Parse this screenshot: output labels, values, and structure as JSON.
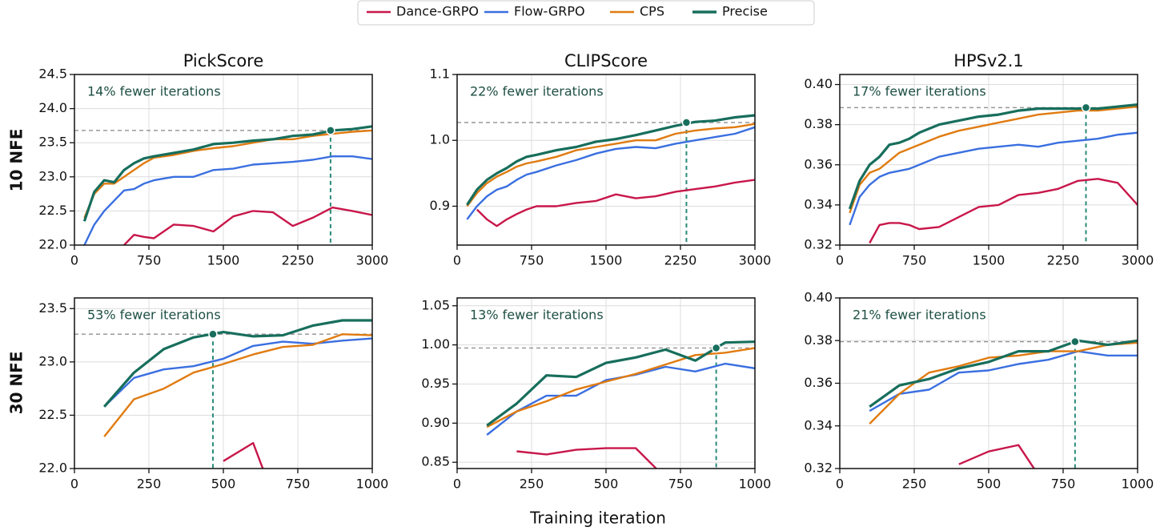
{
  "xlabel": "Training iteration",
  "row_labels": [
    "10 NFE",
    "30 NFE"
  ],
  "chart_data": [
    {
      "type": "line",
      "title": "PickScore",
      "annotation": "14% fewer iterations",
      "x": [
        100,
        200,
        300,
        400,
        500,
        600,
        700,
        800,
        1000,
        1200,
        1400,
        1600,
        1800,
        2000,
        2200,
        2400,
        2600,
        2800,
        3000
      ],
      "xlim": [
        0,
        3000
      ],
      "xticks": [
        0,
        750,
        1500,
        2250,
        3000
      ],
      "ylim": [
        22,
        24.5
      ],
      "yticks": [
        {
          "value": 22,
          "label": "22.0"
        },
        22.5,
        {
          "value": 23,
          "label": "23.0"
        },
        23.5,
        {
          "value": 24,
          "label": "24.0"
        },
        24.5
      ],
      "grid": true,
      "reference": {
        "x": 2580,
        "y": 23.68
      },
      "series": [
        {
          "name": "Dance-GRPO",
          "color": "#c8174a",
          "values": [
            null,
            null,
            null,
            null,
            22.0,
            22.15,
            22.12,
            22.1,
            22.3,
            22.28,
            22.2,
            22.42,
            22.5,
            22.48,
            22.28,
            22.4,
            22.55,
            22.5,
            22.44
          ]
        },
        {
          "name": "Flow-GRPO",
          "color": "#3a6fe0",
          "values": [
            22.0,
            22.3,
            22.5,
            22.65,
            22.8,
            22.82,
            22.9,
            22.95,
            23.0,
            23.0,
            23.1,
            23.12,
            23.18,
            23.2,
            23.22,
            23.25,
            23.3,
            23.3,
            23.26
          ]
        },
        {
          "name": "CPS",
          "color": "#e07b10",
          "values": [
            22.4,
            22.75,
            22.9,
            22.9,
            23.0,
            23.1,
            23.2,
            23.28,
            23.32,
            23.38,
            23.42,
            23.45,
            23.5,
            23.55,
            23.55,
            23.6,
            23.63,
            23.66,
            23.68
          ]
        },
        {
          "name": "Precise",
          "color": "#176e5c",
          "values": [
            22.35,
            22.78,
            22.95,
            22.92,
            23.1,
            23.2,
            23.27,
            23.3,
            23.35,
            23.4,
            23.48,
            23.5,
            23.53,
            23.55,
            23.6,
            23.62,
            23.68,
            23.7,
            23.74
          ]
        }
      ]
    },
    {
      "type": "line",
      "title": "CLIPScore",
      "annotation": "22% fewer iterations",
      "x": [
        100,
        200,
        300,
        400,
        500,
        600,
        700,
        800,
        1000,
        1200,
        1400,
        1600,
        1800,
        2000,
        2200,
        2400,
        2600,
        2800,
        3000
      ],
      "xlim": [
        0,
        3000
      ],
      "xticks": [
        0,
        750,
        1500,
        2250,
        3000
      ],
      "ylim": [
        0.841,
        1.1
      ],
      "yticks": [
        0.9,
        {
          "value": 1,
          "label": "1.0"
        },
        1.1
      ],
      "grid": true,
      "reference": {
        "x": 2310,
        "y": 1.027
      },
      "series": [
        {
          "name": "Dance-GRPO",
          "color": "#c8174a",
          "values": [
            null,
            0.895,
            0.88,
            0.87,
            0.88,
            0.888,
            0.895,
            0.9,
            0.9,
            0.905,
            0.908,
            0.918,
            0.912,
            0.915,
            0.922,
            0.926,
            0.93,
            0.936,
            0.94
          ]
        },
        {
          "name": "Flow-GRPO",
          "color": "#3a6fe0",
          "values": [
            0.88,
            0.9,
            0.915,
            0.925,
            0.93,
            0.94,
            0.948,
            0.952,
            0.962,
            0.97,
            0.98,
            0.987,
            0.99,
            0.988,
            0.995,
            1.0,
            1.005,
            1.01,
            1.02
          ]
        },
        {
          "name": "CPS",
          "color": "#e07b10",
          "values": [
            0.9,
            0.92,
            0.935,
            0.945,
            0.952,
            0.96,
            0.965,
            0.968,
            0.975,
            0.985,
            0.99,
            0.995,
            1.0,
            1.0,
            1.01,
            1.015,
            1.018,
            1.02,
            1.025
          ]
        },
        {
          "name": "Precise",
          "color": "#176e5c",
          "values": [
            0.902,
            0.925,
            0.94,
            0.95,
            0.958,
            0.968,
            0.975,
            0.978,
            0.985,
            0.99,
            0.998,
            1.002,
            1.008,
            1.015,
            1.022,
            1.028,
            1.03,
            1.035,
            1.038
          ]
        }
      ]
    },
    {
      "type": "line",
      "title": "HPSv2.1",
      "annotation": "17% fewer iterations",
      "x": [
        100,
        200,
        300,
        400,
        500,
        600,
        700,
        800,
        1000,
        1200,
        1400,
        1600,
        1800,
        2000,
        2200,
        2400,
        2600,
        2800,
        3000
      ],
      "xlim": [
        0,
        3000
      ],
      "xticks": [
        0,
        750,
        1500,
        2250,
        3000
      ],
      "ylim": [
        0.32,
        0.405
      ],
      "yticks": [
        0.32,
        0.34,
        0.36,
        0.38,
        {
          "value": 0.4,
          "label": "0.40"
        }
      ],
      "grid": true,
      "reference": {
        "x": 2480,
        "y": 0.3885
      },
      "series": [
        {
          "name": "Dance-GRPO",
          "color": "#c8174a",
          "values": [
            null,
            null,
            0.321,
            0.33,
            0.331,
            0.331,
            0.33,
            0.328,
            0.329,
            0.334,
            0.339,
            0.34,
            0.345,
            0.346,
            0.348,
            0.352,
            0.353,
            0.351,
            0.34
          ]
        },
        {
          "name": "Flow-GRPO",
          "color": "#3a6fe0",
          "values": [
            0.33,
            0.344,
            0.35,
            0.354,
            0.356,
            0.357,
            0.358,
            0.36,
            0.364,
            0.366,
            0.368,
            0.369,
            0.37,
            0.369,
            0.371,
            0.372,
            0.373,
            0.375,
            0.376
          ]
        },
        {
          "name": "CPS",
          "color": "#e07b10",
          "values": [
            0.336,
            0.35,
            0.356,
            0.358,
            0.362,
            0.366,
            0.368,
            0.37,
            0.374,
            0.377,
            0.379,
            0.381,
            0.383,
            0.385,
            0.386,
            0.387,
            0.387,
            0.388,
            0.389
          ]
        },
        {
          "name": "Precise",
          "color": "#176e5c",
          "values": [
            0.338,
            0.352,
            0.36,
            0.364,
            0.37,
            0.371,
            0.373,
            0.376,
            0.38,
            0.382,
            0.384,
            0.385,
            0.387,
            0.388,
            0.388,
            0.388,
            0.388,
            0.389,
            0.39
          ]
        }
      ]
    },
    {
      "type": "line",
      "annotation": "53% fewer iterations",
      "x": [
        100,
        200,
        300,
        400,
        500,
        600,
        700,
        800,
        900,
        1000
      ],
      "xlim": [
        0,
        1000
      ],
      "xticks": [
        0,
        250,
        500,
        750,
        1000
      ],
      "ylim": [
        22,
        23.6
      ],
      "yticks": [
        {
          "value": 22,
          "label": "22.0"
        },
        22.5,
        {
          "value": 23,
          "label": "23.0"
        },
        23.5
      ],
      "grid": true,
      "reference": {
        "x": 465,
        "y": 23.26
      },
      "series": [
        {
          "name": "Dance-GRPO",
          "color": "#c8174a",
          "values": [
            null,
            null,
            null,
            null,
            22.07,
            22.24,
            21.5,
            null,
            null,
            null
          ]
        },
        {
          "name": "Flow-GRPO",
          "color": "#3a6fe0",
          "values": [
            22.58,
            22.85,
            22.93,
            22.96,
            23.03,
            23.15,
            23.19,
            23.17,
            23.2,
            23.22
          ]
        },
        {
          "name": "CPS",
          "color": "#e07b10",
          "values": [
            22.3,
            22.65,
            22.75,
            22.9,
            22.98,
            23.07,
            23.14,
            23.16,
            23.26,
            23.25
          ]
        },
        {
          "name": "Precise",
          "color": "#176e5c",
          "values": [
            22.58,
            22.9,
            23.12,
            23.23,
            23.28,
            23.24,
            23.25,
            23.34,
            23.39,
            23.39
          ]
        }
      ]
    },
    {
      "type": "line",
      "annotation": "13% fewer iterations",
      "x": [
        100,
        200,
        300,
        400,
        500,
        600,
        700,
        800,
        900,
        1000
      ],
      "xlim": [
        0,
        1000
      ],
      "xticks": [
        0,
        250,
        500,
        750,
        1000
      ],
      "ylim": [
        0.842,
        1.06
      ],
      "yticks": [
        0.85,
        {
          "value": 0.9,
          "label": "0.90"
        },
        0.95,
        {
          "value": 1,
          "label": "1.00"
        },
        1.05
      ],
      "grid": true,
      "reference": {
        "x": 870,
        "y": 0.996
      },
      "series": [
        {
          "name": "Dance-GRPO",
          "color": "#c8174a",
          "values": [
            null,
            0.864,
            0.86,
            0.866,
            0.868,
            0.868,
            0.83,
            null,
            null,
            null
          ]
        },
        {
          "name": "Flow-GRPO",
          "color": "#3a6fe0",
          "values": [
            0.885,
            0.915,
            0.935,
            0.935,
            0.955,
            0.962,
            0.972,
            0.966,
            0.976,
            0.97
          ]
        },
        {
          "name": "CPS",
          "color": "#e07b10",
          "values": [
            0.895,
            0.915,
            0.928,
            0.943,
            0.953,
            0.963,
            0.975,
            0.987,
            0.99,
            0.996
          ]
        },
        {
          "name": "Precise",
          "color": "#176e5c",
          "values": [
            0.897,
            0.925,
            0.961,
            0.959,
            0.977,
            0.984,
            0.994,
            0.98,
            1.003,
            1.004
          ]
        }
      ]
    },
    {
      "type": "line",
      "annotation": "21% fewer iterations",
      "x": [
        100,
        200,
        300,
        400,
        500,
        600,
        700,
        800,
        900,
        1000
      ],
      "xlim": [
        0,
        1000
      ],
      "xticks": [
        0,
        250,
        500,
        750,
        1000
      ],
      "ylim": [
        0.32,
        0.4
      ],
      "yticks": [
        0.32,
        0.34,
        0.36,
        0.38,
        {
          "value": 0.4,
          "label": "0.40"
        }
      ],
      "grid": true,
      "reference": {
        "x": 790,
        "y": 0.3795
      },
      "series": [
        {
          "name": "Dance-GRPO",
          "color": "#c8174a",
          "values": [
            null,
            null,
            null,
            0.322,
            0.328,
            0.331,
            0.31,
            null,
            null,
            null
          ]
        },
        {
          "name": "Flow-GRPO",
          "color": "#3a6fe0",
          "values": [
            0.347,
            0.355,
            0.357,
            0.365,
            0.366,
            0.369,
            0.371,
            0.375,
            0.373,
            0.373
          ]
        },
        {
          "name": "CPS",
          "color": "#e07b10",
          "values": [
            0.341,
            0.355,
            0.365,
            0.368,
            0.372,
            0.373,
            0.375,
            0.375,
            0.378,
            0.379
          ]
        },
        {
          "name": "Precise",
          "color": "#176e5c",
          "values": [
            0.349,
            0.359,
            0.362,
            0.367,
            0.37,
            0.375,
            0.375,
            0.38,
            0.378,
            0.38
          ]
        }
      ]
    }
  ]
}
